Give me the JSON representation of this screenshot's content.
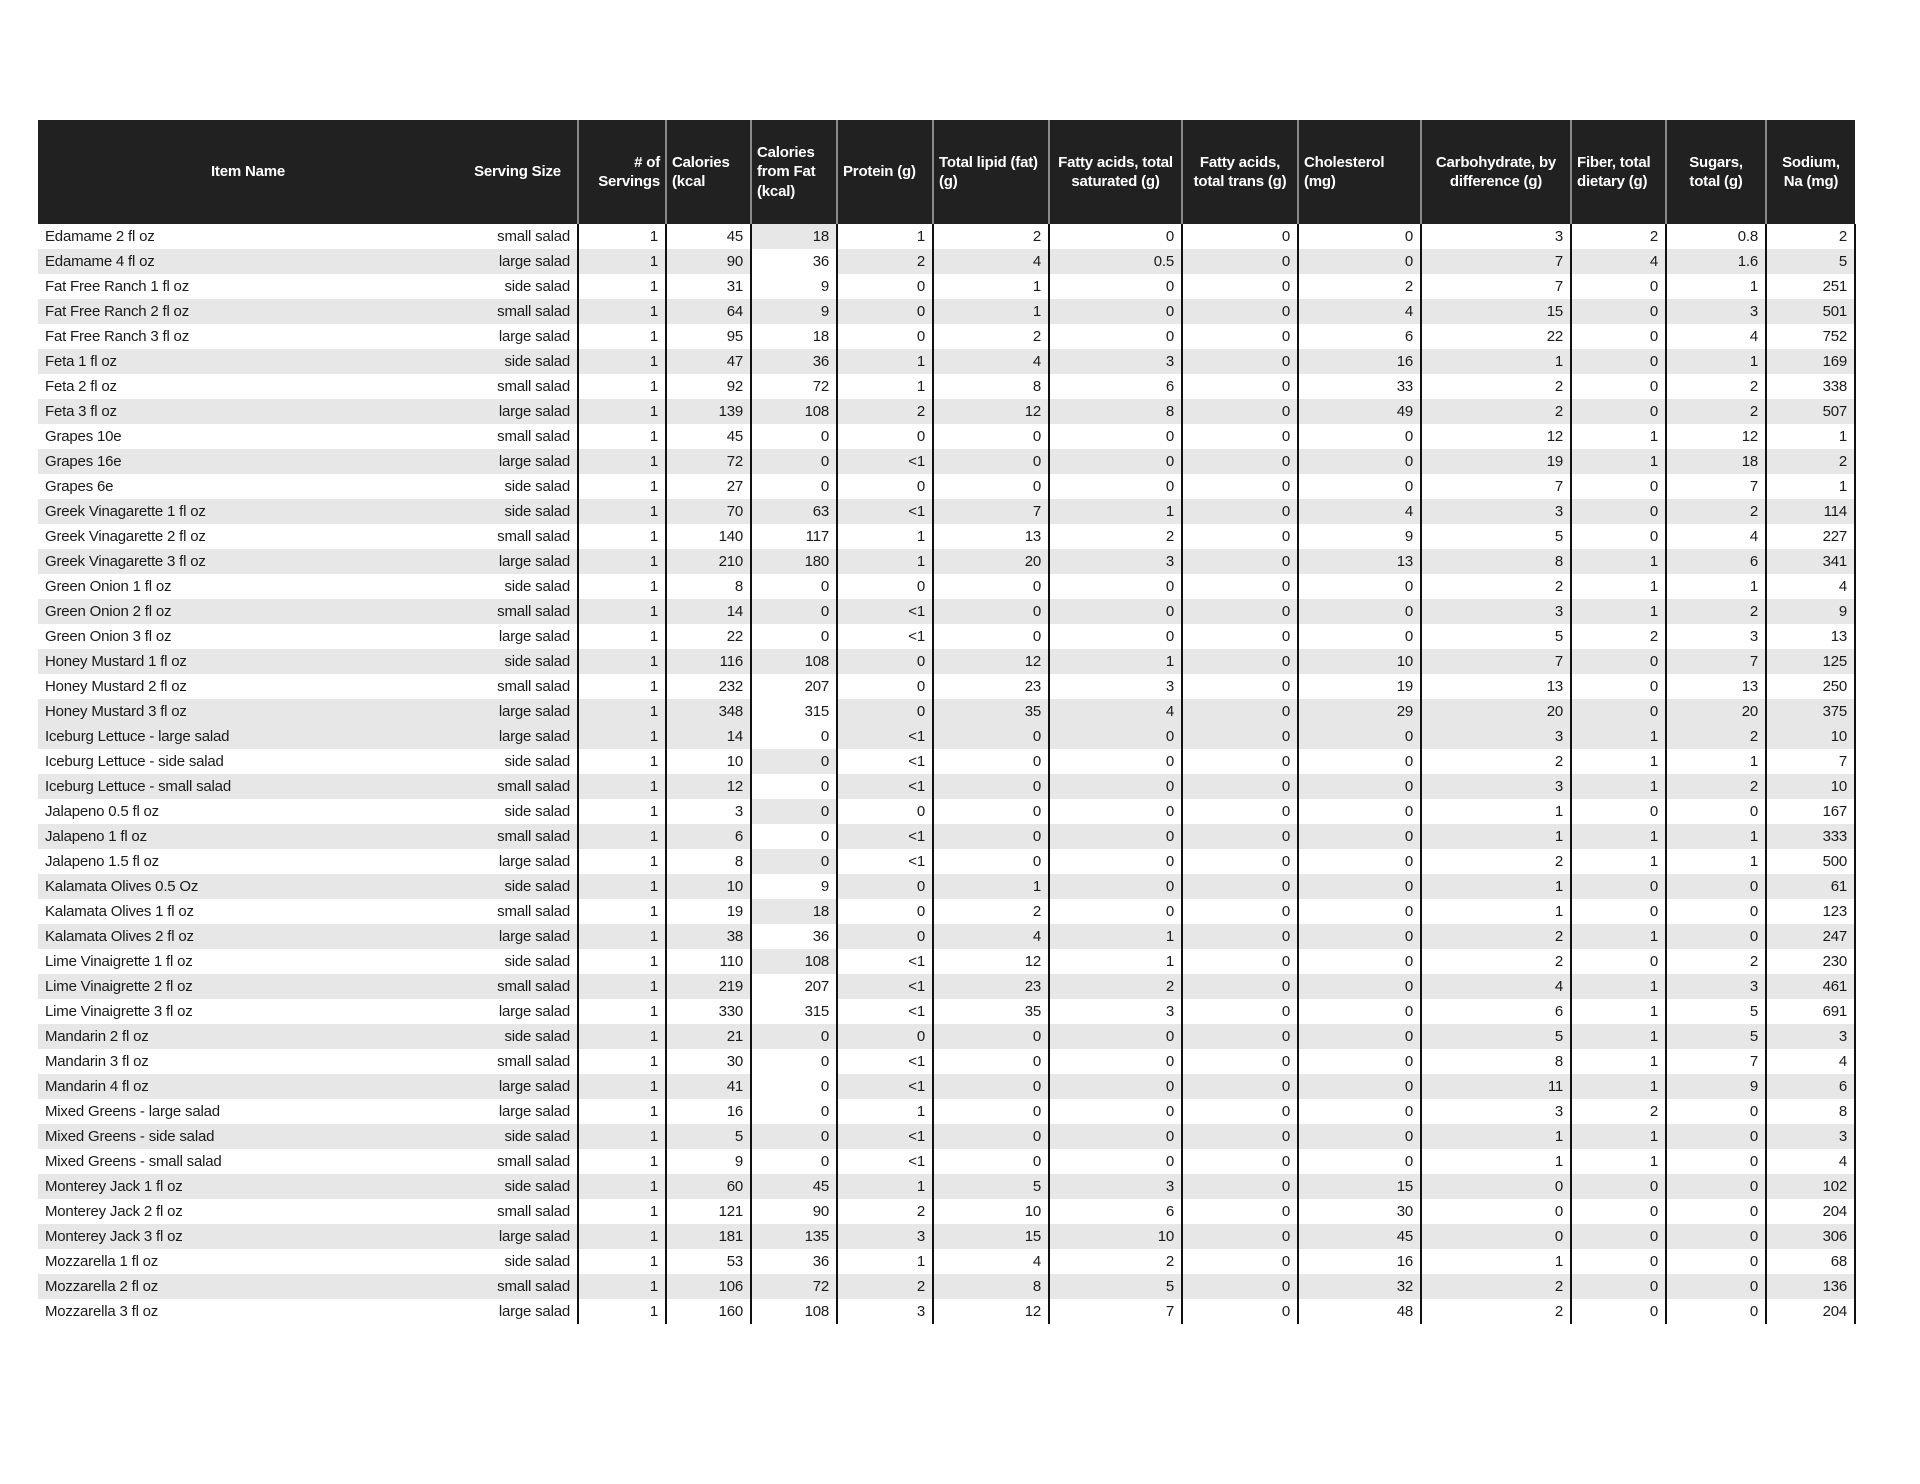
{
  "table": {
    "columns": [
      {
        "key": "name",
        "label": "Item Name"
      },
      {
        "key": "serving",
        "label": "Serving Size"
      },
      {
        "key": "servings",
        "label": "# of Servings"
      },
      {
        "key": "cal",
        "label": "Calories (kcal"
      },
      {
        "key": "calfat",
        "label": "Calories from Fat (kcal)"
      },
      {
        "key": "protein",
        "label": "Protein (g)"
      },
      {
        "key": "fat",
        "label": "Total lipid (fat) (g)"
      },
      {
        "key": "sat",
        "label": "Fatty acids, total saturated (g)"
      },
      {
        "key": "trans",
        "label": "Fatty acids, total trans (g)"
      },
      {
        "key": "chol",
        "label": "Cholesterol (mg)"
      },
      {
        "key": "carb",
        "label": "Carbohydrate, by difference (g)"
      },
      {
        "key": "fiber",
        "label": "Fiber, total dietary (g)"
      },
      {
        "key": "sugar",
        "label": "Sugars, total (g)"
      },
      {
        "key": "sodium",
        "label": "Sodium, Na (mg)"
      }
    ],
    "rows": [
      {
        "name": "Edamame 2 fl oz",
        "serving": "small salad",
        "servings": "1",
        "cal": "45",
        "calfat": "18",
        "protein": "1",
        "fat": "2",
        "sat": "0",
        "trans": "0",
        "chol": "0",
        "carb": "3",
        "fiber": "2",
        "sugar": "0.8",
        "sodium": "2",
        "shade": "w",
        "cf": "g"
      },
      {
        "name": "Edamame 4 fl oz",
        "serving": "large salad",
        "servings": "1",
        "cal": "90",
        "calfat": "36",
        "protein": "2",
        "fat": "4",
        "sat": "0.5",
        "trans": "0",
        "chol": "0",
        "carb": "7",
        "fiber": "4",
        "sugar": "1.6",
        "sodium": "5",
        "shade": "g",
        "cf": "w"
      },
      {
        "name": "Fat Free Ranch 1 fl oz",
        "serving": "side salad",
        "servings": "1",
        "cal": "31",
        "calfat": "9",
        "protein": "0",
        "fat": "1",
        "sat": "0",
        "trans": "0",
        "chol": "2",
        "carb": "7",
        "fiber": "0",
        "sugar": "1",
        "sodium": "251",
        "shade": "w",
        "cf": "w"
      },
      {
        "name": "Fat Free Ranch 2 fl oz",
        "serving": "small salad",
        "servings": "1",
        "cal": "64",
        "calfat": "9",
        "protein": "0",
        "fat": "1",
        "sat": "0",
        "trans": "0",
        "chol": "4",
        "carb": "15",
        "fiber": "0",
        "sugar": "3",
        "sodium": "501",
        "shade": "g",
        "cf": "g"
      },
      {
        "name": "Fat Free Ranch 3 fl oz",
        "serving": "large salad",
        "servings": "1",
        "cal": "95",
        "calfat": "18",
        "protein": "0",
        "fat": "2",
        "sat": "0",
        "trans": "0",
        "chol": "6",
        "carb": "22",
        "fiber": "0",
        "sugar": "4",
        "sodium": "752",
        "shade": "w",
        "cf": "w"
      },
      {
        "name": "Feta 1 fl oz",
        "serving": "side salad",
        "servings": "1",
        "cal": "47",
        "calfat": "36",
        "protein": "1",
        "fat": "4",
        "sat": "3",
        "trans": "0",
        "chol": "16",
        "carb": "1",
        "fiber": "0",
        "sugar": "1",
        "sodium": "169",
        "shade": "g",
        "cf": "g"
      },
      {
        "name": "Feta 2 fl oz",
        "serving": "small salad",
        "servings": "1",
        "cal": "92",
        "calfat": "72",
        "protein": "1",
        "fat": "8",
        "sat": "6",
        "trans": "0",
        "chol": "33",
        "carb": "2",
        "fiber": "0",
        "sugar": "2",
        "sodium": "338",
        "shade": "w",
        "cf": "w"
      },
      {
        "name": "Feta 3 fl oz",
        "serving": "large salad",
        "servings": "1",
        "cal": "139",
        "calfat": "108",
        "protein": "2",
        "fat": "12",
        "sat": "8",
        "trans": "0",
        "chol": "49",
        "carb": "2",
        "fiber": "0",
        "sugar": "2",
        "sodium": "507",
        "shade": "g",
        "cf": "g"
      },
      {
        "name": "Grapes 10e",
        "serving": "small salad",
        "servings": "1",
        "cal": "45",
        "calfat": "0",
        "protein": "0",
        "fat": "0",
        "sat": "0",
        "trans": "0",
        "chol": "0",
        "carb": "12",
        "fiber": "1",
        "sugar": "12",
        "sodium": "1",
        "shade": "w",
        "cf": "w"
      },
      {
        "name": "Grapes 16e",
        "serving": "large salad",
        "servings": "1",
        "cal": "72",
        "calfat": "0",
        "protein": "<1",
        "fat": "0",
        "sat": "0",
        "trans": "0",
        "chol": "0",
        "carb": "19",
        "fiber": "1",
        "sugar": "18",
        "sodium": "2",
        "shade": "g",
        "cf": "g"
      },
      {
        "name": "Grapes 6e",
        "serving": "side salad",
        "servings": "1",
        "cal": "27",
        "calfat": "0",
        "protein": "0",
        "fat": "0",
        "sat": "0",
        "trans": "0",
        "chol": "0",
        "carb": "7",
        "fiber": "0",
        "sugar": "7",
        "sodium": "1",
        "shade": "w",
        "cf": "w"
      },
      {
        "name": "Greek Vinagarette 1 fl oz",
        "serving": "side salad",
        "servings": "1",
        "cal": "70",
        "calfat": "63",
        "protein": "<1",
        "fat": "7",
        "sat": "1",
        "trans": "0",
        "chol": "4",
        "carb": "3",
        "fiber": "0",
        "sugar": "2",
        "sodium": "114",
        "shade": "g",
        "cf": "g"
      },
      {
        "name": "Greek Vinagarette 2 fl oz",
        "serving": "small salad",
        "servings": "1",
        "cal": "140",
        "calfat": "117",
        "protein": "1",
        "fat": "13",
        "sat": "2",
        "trans": "0",
        "chol": "9",
        "carb": "5",
        "fiber": "0",
        "sugar": "4",
        "sodium": "227",
        "shade": "w",
        "cf": "w"
      },
      {
        "name": "Greek Vinagarette 3 fl oz",
        "serving": "large salad",
        "servings": "1",
        "cal": "210",
        "calfat": "180",
        "protein": "1",
        "fat": "20",
        "sat": "3",
        "trans": "0",
        "chol": "13",
        "carb": "8",
        "fiber": "1",
        "sugar": "6",
        "sodium": "341",
        "shade": "g",
        "cf": "g"
      },
      {
        "name": "Green Onion 1 fl oz",
        "serving": "side salad",
        "servings": "1",
        "cal": "8",
        "calfat": "0",
        "protein": "0",
        "fat": "0",
        "sat": "0",
        "trans": "0",
        "chol": "0",
        "carb": "2",
        "fiber": "1",
        "sugar": "1",
        "sodium": "4",
        "shade": "w",
        "cf": "w"
      },
      {
        "name": "Green Onion 2 fl oz",
        "serving": "small salad",
        "servings": "1",
        "cal": "14",
        "calfat": "0",
        "protein": "<1",
        "fat": "0",
        "sat": "0",
        "trans": "0",
        "chol": "0",
        "carb": "3",
        "fiber": "1",
        "sugar": "2",
        "sodium": "9",
        "shade": "g",
        "cf": "g"
      },
      {
        "name": "Green Onion 3 fl oz",
        "serving": "large salad",
        "servings": "1",
        "cal": "22",
        "calfat": "0",
        "protein": "<1",
        "fat": "0",
        "sat": "0",
        "trans": "0",
        "chol": "0",
        "carb": "5",
        "fiber": "2",
        "sugar": "3",
        "sodium": "13",
        "shade": "w",
        "cf": "w"
      },
      {
        "name": "Honey Mustard 1 fl oz",
        "serving": "side salad",
        "servings": "1",
        "cal": "116",
        "calfat": "108",
        "protein": "0",
        "fat": "12",
        "sat": "1",
        "trans": "0",
        "chol": "10",
        "carb": "7",
        "fiber": "0",
        "sugar": "7",
        "sodium": "125",
        "shade": "g",
        "cf": "g"
      },
      {
        "name": "Honey Mustard 2 fl oz",
        "serving": "small salad",
        "servings": "1",
        "cal": "232",
        "calfat": "207",
        "protein": "0",
        "fat": "23",
        "sat": "3",
        "trans": "0",
        "chol": "19",
        "carb": "13",
        "fiber": "0",
        "sugar": "13",
        "sodium": "250",
        "shade": "w",
        "cf": "w"
      },
      {
        "name": "Honey Mustard 3 fl oz",
        "serving": "large salad",
        "servings": "1",
        "cal": "348",
        "calfat": "315",
        "protein": "0",
        "fat": "35",
        "sat": "4",
        "trans": "0",
        "chol": "29",
        "carb": "20",
        "fiber": "0",
        "sugar": "20",
        "sodium": "375",
        "shade": "g",
        "cf": "w"
      },
      {
        "name": "Iceburg Lettuce - large salad",
        "serving": "large salad",
        "servings": "1",
        "cal": "14",
        "calfat": "0",
        "protein": "<1",
        "fat": "0",
        "sat": "0",
        "trans": "0",
        "chol": "0",
        "carb": "3",
        "fiber": "1",
        "sugar": "2",
        "sodium": "10",
        "shade": "g",
        "cf": "w"
      },
      {
        "name": "Iceburg Lettuce - side salad",
        "serving": "side salad",
        "servings": "1",
        "cal": "10",
        "calfat": "0",
        "protein": "<1",
        "fat": "0",
        "sat": "0",
        "trans": "0",
        "chol": "0",
        "carb": "2",
        "fiber": "1",
        "sugar": "1",
        "sodium": "7",
        "shade": "w",
        "cf": "g"
      },
      {
        "name": "Iceburg Lettuce - small salad",
        "serving": "small salad",
        "servings": "1",
        "cal": "12",
        "calfat": "0",
        "protein": "<1",
        "fat": "0",
        "sat": "0",
        "trans": "0",
        "chol": "0",
        "carb": "3",
        "fiber": "1",
        "sugar": "2",
        "sodium": "10",
        "shade": "g",
        "cf": "w"
      },
      {
        "name": "Jalapeno 0.5 fl oz",
        "serving": "side salad",
        "servings": "1",
        "cal": "3",
        "calfat": "0",
        "protein": "0",
        "fat": "0",
        "sat": "0",
        "trans": "0",
        "chol": "0",
        "carb": "1",
        "fiber": "0",
        "sugar": "0",
        "sodium": "167",
        "shade": "w",
        "cf": "g"
      },
      {
        "name": "Jalapeno 1 fl oz",
        "serving": "small salad",
        "servings": "1",
        "cal": "6",
        "calfat": "0",
        "protein": "<1",
        "fat": "0",
        "sat": "0",
        "trans": "0",
        "chol": "0",
        "carb": "1",
        "fiber": "1",
        "sugar": "1",
        "sodium": "333",
        "shade": "g",
        "cf": "w"
      },
      {
        "name": "Jalapeno 1.5 fl oz",
        "serving": "large salad",
        "servings": "1",
        "cal": "8",
        "calfat": "0",
        "protein": "<1",
        "fat": "0",
        "sat": "0",
        "trans": "0",
        "chol": "0",
        "carb": "2",
        "fiber": "1",
        "sugar": "1",
        "sodium": "500",
        "shade": "w",
        "cf": "g"
      },
      {
        "name": "Kalamata Olives 0.5 Oz",
        "serving": "side salad",
        "servings": "1",
        "cal": "10",
        "calfat": "9",
        "protein": "0",
        "fat": "1",
        "sat": "0",
        "trans": "0",
        "chol": "0",
        "carb": "1",
        "fiber": "0",
        "sugar": "0",
        "sodium": "61",
        "shade": "g",
        "cf": "w"
      },
      {
        "name": "Kalamata Olives 1 fl oz",
        "serving": "small salad",
        "servings": "1",
        "cal": "19",
        "calfat": "18",
        "protein": "0",
        "fat": "2",
        "sat": "0",
        "trans": "0",
        "chol": "0",
        "carb": "1",
        "fiber": "0",
        "sugar": "0",
        "sodium": "123",
        "shade": "w",
        "cf": "g"
      },
      {
        "name": "Kalamata Olives 2 fl oz",
        "serving": "large salad",
        "servings": "1",
        "cal": "38",
        "calfat": "36",
        "protein": "0",
        "fat": "4",
        "sat": "1",
        "trans": "0",
        "chol": "0",
        "carb": "2",
        "fiber": "1",
        "sugar": "0",
        "sodium": "247",
        "shade": "g",
        "cf": "w"
      },
      {
        "name": "Lime Vinaigrette 1 fl oz",
        "serving": "side salad",
        "servings": "1",
        "cal": "110",
        "calfat": "108",
        "protein": "<1",
        "fat": "12",
        "sat": "1",
        "trans": "0",
        "chol": "0",
        "carb": "2",
        "fiber": "0",
        "sugar": "2",
        "sodium": "230",
        "shade": "w",
        "cf": "g"
      },
      {
        "name": "Lime Vinaigrette 2 fl oz",
        "serving": "small salad",
        "servings": "1",
        "cal": "219",
        "calfat": "207",
        "protein": "<1",
        "fat": "23",
        "sat": "2",
        "trans": "0",
        "chol": "0",
        "carb": "4",
        "fiber": "1",
        "sugar": "3",
        "sodium": "461",
        "shade": "g",
        "cf": "w"
      },
      {
        "name": "Lime Vinaigrette 3 fl oz",
        "serving": "large salad",
        "servings": "1",
        "cal": "330",
        "calfat": "315",
        "protein": "<1",
        "fat": "35",
        "sat": "3",
        "trans": "0",
        "chol": "0",
        "carb": "6",
        "fiber": "1",
        "sugar": "5",
        "sodium": "691",
        "shade": "w",
        "cf": "w"
      },
      {
        "name": "Mandarin 2 fl oz",
        "serving": "side salad",
        "servings": "1",
        "cal": "21",
        "calfat": "0",
        "protein": "0",
        "fat": "0",
        "sat": "0",
        "trans": "0",
        "chol": "0",
        "carb": "5",
        "fiber": "1",
        "sugar": "5",
        "sodium": "3",
        "shade": "g",
        "cf": "g"
      },
      {
        "name": "Mandarin 3 fl oz",
        "serving": "small salad",
        "servings": "1",
        "cal": "30",
        "calfat": "0",
        "protein": "<1",
        "fat": "0",
        "sat": "0",
        "trans": "0",
        "chol": "0",
        "carb": "8",
        "fiber": "1",
        "sugar": "7",
        "sodium": "4",
        "shade": "w",
        "cf": "w"
      },
      {
        "name": "Mandarin 4 fl oz",
        "serving": "large salad",
        "servings": "1",
        "cal": "41",
        "calfat": "0",
        "protein": "<1",
        "fat": "0",
        "sat": "0",
        "trans": "0",
        "chol": "0",
        "carb": "11",
        "fiber": "1",
        "sugar": "9",
        "sodium": "6",
        "shade": "g",
        "cf": "w"
      },
      {
        "name": "Mixed Greens - large salad",
        "serving": "large salad",
        "servings": "1",
        "cal": "16",
        "calfat": "0",
        "protein": "1",
        "fat": "0",
        "sat": "0",
        "trans": "0",
        "chol": "0",
        "carb": "3",
        "fiber": "2",
        "sugar": "0",
        "sodium": "8",
        "shade": "w",
        "cf": "w"
      },
      {
        "name": "Mixed Greens - side salad",
        "serving": "side salad",
        "servings": "1",
        "cal": "5",
        "calfat": "0",
        "protein": "<1",
        "fat": "0",
        "sat": "0",
        "trans": "0",
        "chol": "0",
        "carb": "1",
        "fiber": "1",
        "sugar": "0",
        "sodium": "3",
        "shade": "g",
        "cf": "g"
      },
      {
        "name": "Mixed Greens - small salad",
        "serving": "small salad",
        "servings": "1",
        "cal": "9",
        "calfat": "0",
        "protein": "<1",
        "fat": "0",
        "sat": "0",
        "trans": "0",
        "chol": "0",
        "carb": "1",
        "fiber": "1",
        "sugar": "0",
        "sodium": "4",
        "shade": "w",
        "cf": "w"
      },
      {
        "name": "Monterey Jack 1 fl oz",
        "serving": "side salad",
        "servings": "1",
        "cal": "60",
        "calfat": "45",
        "protein": "1",
        "fat": "5",
        "sat": "3",
        "trans": "0",
        "chol": "15",
        "carb": "0",
        "fiber": "0",
        "sugar": "0",
        "sodium": "102",
        "shade": "g",
        "cf": "g"
      },
      {
        "name": "Monterey Jack 2 fl oz",
        "serving": "small salad",
        "servings": "1",
        "cal": "121",
        "calfat": "90",
        "protein": "2",
        "fat": "10",
        "sat": "6",
        "trans": "0",
        "chol": "30",
        "carb": "0",
        "fiber": "0",
        "sugar": "0",
        "sodium": "204",
        "shade": "w",
        "cf": "w"
      },
      {
        "name": "Monterey Jack 3 fl oz",
        "serving": "large salad",
        "servings": "1",
        "cal": "181",
        "calfat": "135",
        "protein": "3",
        "fat": "15",
        "sat": "10",
        "trans": "0",
        "chol": "45",
        "carb": "0",
        "fiber": "0",
        "sugar": "0",
        "sodium": "306",
        "shade": "g",
        "cf": "g"
      },
      {
        "name": "Mozzarella 1 fl oz",
        "serving": "side salad",
        "servings": "1",
        "cal": "53",
        "calfat": "36",
        "protein": "1",
        "fat": "4",
        "sat": "2",
        "trans": "0",
        "chol": "16",
        "carb": "1",
        "fiber": "0",
        "sugar": "0",
        "sodium": "68",
        "shade": "w",
        "cf": "w"
      },
      {
        "name": "Mozzarella 2 fl oz",
        "serving": "small salad",
        "servings": "1",
        "cal": "106",
        "calfat": "72",
        "protein": "2",
        "fat": "8",
        "sat": "5",
        "trans": "0",
        "chol": "32",
        "carb": "2",
        "fiber": "0",
        "sugar": "0",
        "sodium": "136",
        "shade": "g",
        "cf": "g"
      },
      {
        "name": "Mozzarella 3 fl oz",
        "serving": "large salad",
        "servings": "1",
        "cal": "160",
        "calfat": "108",
        "protein": "3",
        "fat": "12",
        "sat": "7",
        "trans": "0",
        "chol": "48",
        "carb": "2",
        "fiber": "0",
        "sugar": "0",
        "sodium": "204",
        "shade": "w",
        "cf": "w"
      }
    ]
  }
}
